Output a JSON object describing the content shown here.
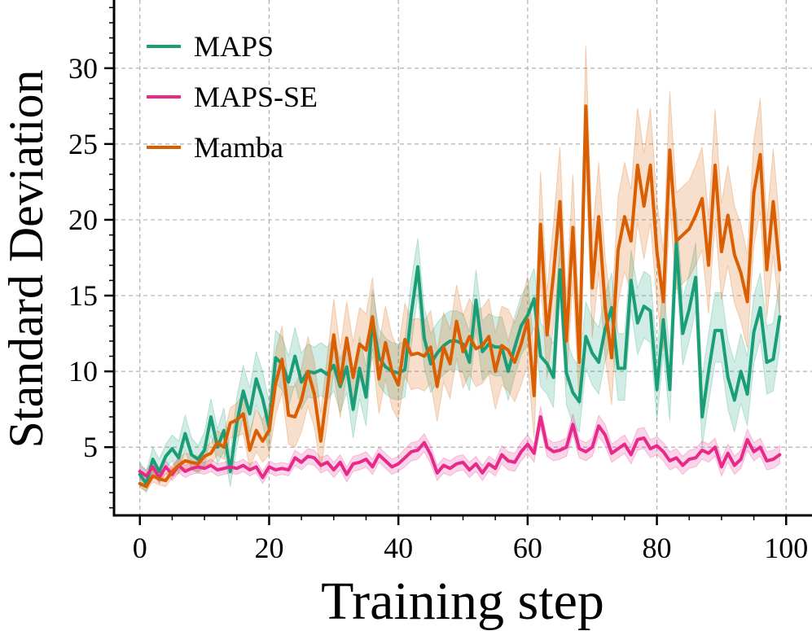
{
  "chart_data": {
    "type": "line",
    "title": "",
    "xlabel": "Training step",
    "ylabel": "Standard Deviation",
    "xlim": [
      -4,
      104
    ],
    "ylim": [
      0.5,
      34.5
    ],
    "grid": true,
    "legend_position": "top-left",
    "xticks": [
      0,
      20,
      40,
      60,
      80,
      100
    ],
    "xtick_labels": [
      "0",
      "20",
      "40",
      "60",
      "80",
      "100"
    ],
    "yticks": [
      5,
      10,
      15,
      20,
      25,
      30
    ],
    "ytick_labels": [
      "5",
      "10",
      "15",
      "20",
      "25",
      "30"
    ],
    "x": [
      0,
      1,
      2,
      3,
      4,
      5,
      6,
      7,
      8,
      9,
      10,
      11,
      12,
      13,
      14,
      15,
      16,
      17,
      18,
      19,
      20,
      21,
      22,
      23,
      24,
      25,
      26,
      27,
      28,
      29,
      30,
      31,
      32,
      33,
      34,
      35,
      36,
      37,
      38,
      39,
      40,
      41,
      42,
      43,
      44,
      45,
      46,
      47,
      48,
      49,
      50,
      51,
      52,
      53,
      54,
      55,
      56,
      57,
      58,
      59,
      60,
      61,
      62,
      63,
      64,
      65,
      66,
      67,
      68,
      69,
      70,
      71,
      72,
      73,
      74,
      75,
      76,
      77,
      78,
      79,
      80,
      81,
      82,
      83,
      84,
      85,
      86,
      87,
      88,
      89,
      90,
      91,
      92,
      93,
      94,
      95,
      96,
      97,
      98,
      99
    ],
    "series": [
      {
        "name": "MAPS",
        "color": "#1b9e77",
        "values": [
          3.2,
          2.6,
          4.2,
          3.4,
          4.4,
          4.9,
          4.3,
          5.9,
          4.5,
          4.2,
          4.8,
          7.0,
          5.0,
          6.1,
          3.4,
          6.6,
          8.7,
          7.2,
          9.5,
          8.2,
          6.3,
          10.9,
          10.5,
          9.3,
          11.0,
          9.3,
          10.0,
          9.9,
          10.1,
          9.8,
          10.4,
          9.0,
          10.3,
          7.5,
          10.2,
          8.3,
          13.4,
          10.9,
          10.3,
          10.0,
          9.9,
          10.1,
          13.8,
          16.9,
          12.2,
          10.5,
          11.2,
          11.7,
          12.0,
          12.0,
          11.8,
          10.6,
          14.7,
          11.3,
          11.8,
          11.6,
          11.6,
          10.0,
          11.6,
          13.0,
          13.7,
          14.8,
          11.0,
          10.5,
          9.6,
          16.7,
          9.9,
          8.6,
          8.0,
          12.3,
          11.2,
          10.6,
          12.8,
          14.2,
          10.2,
          10.2,
          16.0,
          13.2,
          14.3,
          14.0,
          8.8,
          13.4,
          8.8,
          18.5,
          12.5,
          14.1,
          16.2,
          7.0,
          10.0,
          12.7,
          12.7,
          9.6,
          8.1,
          10.0,
          8.5,
          12.6,
          14.2,
          10.6,
          10.8,
          13.6
        ],
        "upper": [
          4.0,
          3.4,
          5.0,
          4.2,
          5.2,
          5.8,
          5.4,
          7.1,
          5.6,
          5.1,
          6.0,
          8.2,
          6.2,
          7.6,
          4.6,
          8.3,
          10.4,
          8.9,
          11.3,
          10.0,
          8.0,
          12.7,
          12.3,
          11.0,
          12.9,
          11.2,
          11.8,
          11.6,
          11.9,
          11.6,
          12.2,
          10.8,
          12.1,
          9.5,
          12.3,
          10.3,
          15.4,
          12.8,
          12.2,
          11.9,
          11.8,
          12.0,
          16.0,
          18.8,
          14.2,
          12.5,
          13.2,
          13.7,
          14.0,
          14.0,
          13.8,
          12.6,
          16.7,
          13.3,
          13.8,
          13.6,
          13.6,
          12.0,
          13.6,
          15.0,
          15.7,
          16.8,
          13.2,
          12.7,
          11.8,
          18.6,
          12.2,
          10.9,
          10.3,
          14.6,
          13.5,
          12.9,
          15.1,
          16.5,
          12.5,
          12.5,
          18.0,
          15.5,
          16.6,
          16.3,
          11.2,
          15.8,
          11.3,
          20.8,
          14.8,
          16.4,
          18.5,
          9.6,
          12.5,
          15.2,
          15.2,
          12.1,
          10.6,
          12.5,
          11.0,
          15.0,
          16.5,
          13.0,
          13.2,
          15.9
        ],
        "lower": [
          2.5,
          2.0,
          3.4,
          2.7,
          3.6,
          4.1,
          3.3,
          4.8,
          3.5,
          3.3,
          3.7,
          5.8,
          3.9,
          4.7,
          2.4,
          5.0,
          7.1,
          5.6,
          7.8,
          6.5,
          4.7,
          9.2,
          8.8,
          7.7,
          9.2,
          7.5,
          8.3,
          8.2,
          8.4,
          8.1,
          8.7,
          7.3,
          8.6,
          5.6,
          8.2,
          6.4,
          11.5,
          9.1,
          8.5,
          8.2,
          8.1,
          8.3,
          11.7,
          15.1,
          10.3,
          8.6,
          9.3,
          9.8,
          10.1,
          10.1,
          9.9,
          8.7,
          12.8,
          9.4,
          9.9,
          9.7,
          9.7,
          8.1,
          9.7,
          11.1,
          11.8,
          12.9,
          9.0,
          8.5,
          7.6,
          14.9,
          7.8,
          6.5,
          6.0,
          10.2,
          9.1,
          8.5,
          10.7,
          12.1,
          8.1,
          8.1,
          14.1,
          11.1,
          12.2,
          11.9,
          6.8,
          11.2,
          6.7,
          16.4,
          10.4,
          12.0,
          14.1,
          5.0,
          7.9,
          10.6,
          10.6,
          7.5,
          6.0,
          7.9,
          6.4,
          10.5,
          12.1,
          8.5,
          8.7,
          11.5
        ]
      },
      {
        "name": "MAPS-SE",
        "color": "#e7298a",
        "values": [
          3.4,
          3.1,
          3.7,
          3.0,
          3.7,
          3.2,
          3.8,
          3.4,
          3.6,
          3.7,
          3.6,
          3.8,
          3.5,
          3.6,
          3.7,
          3.6,
          3.8,
          3.5,
          3.7,
          3.0,
          3.7,
          3.5,
          3.6,
          3.5,
          4.3,
          4.0,
          4.4,
          4.3,
          3.8,
          4.0,
          3.5,
          4.0,
          3.2,
          3.9,
          4.0,
          4.2,
          3.7,
          4.5,
          4.1,
          3.7,
          3.9,
          4.3,
          4.7,
          4.8,
          5.3,
          4.5,
          3.3,
          3.8,
          3.6,
          3.9,
          4.0,
          3.5,
          3.9,
          3.3,
          3.9,
          3.6,
          4.5,
          4.1,
          4.0,
          4.7,
          5.2,
          4.6,
          7.0,
          5.0,
          4.7,
          4.8,
          5.0,
          6.5,
          4.9,
          4.7,
          5.0,
          6.4,
          5.8,
          4.6,
          4.9,
          5.2,
          4.5,
          5.5,
          5.6,
          4.9,
          5.1,
          4.7,
          4.1,
          4.3,
          3.8,
          4.2,
          4.3,
          4.8,
          4.6,
          5.0,
          3.7,
          4.6,
          3.8,
          4.2,
          5.5,
          4.7,
          5.0,
          4.1,
          4.2,
          4.5
        ],
        "upper": [
          3.8,
          3.5,
          4.1,
          3.4,
          4.1,
          3.6,
          4.3,
          3.8,
          4.0,
          4.1,
          4.0,
          4.2,
          3.9,
          4.0,
          4.1,
          4.0,
          4.2,
          3.9,
          4.1,
          3.4,
          4.1,
          3.9,
          4.0,
          3.9,
          4.8,
          4.5,
          4.9,
          4.8,
          4.3,
          4.5,
          4.0,
          4.5,
          3.7,
          4.4,
          4.5,
          4.7,
          4.2,
          5.0,
          4.6,
          4.2,
          4.4,
          4.9,
          5.3,
          5.4,
          5.9,
          5.1,
          3.8,
          4.3,
          4.1,
          4.4,
          4.5,
          4.0,
          4.4,
          3.8,
          4.4,
          4.1,
          5.1,
          4.7,
          4.6,
          5.3,
          5.8,
          5.2,
          7.7,
          5.6,
          5.3,
          5.4,
          5.6,
          7.2,
          5.5,
          5.3,
          5.6,
          7.1,
          6.5,
          5.2,
          5.5,
          5.8,
          5.1,
          6.2,
          6.3,
          5.5,
          5.7,
          5.3,
          4.7,
          4.9,
          4.4,
          4.8,
          4.9,
          5.4,
          5.2,
          5.6,
          4.3,
          5.2,
          4.4,
          4.8,
          6.2,
          5.3,
          5.6,
          4.7,
          4.8,
          5.1
        ],
        "lower": [
          3.0,
          2.7,
          3.3,
          2.6,
          3.3,
          2.8,
          3.3,
          3.0,
          3.2,
          3.3,
          3.2,
          3.4,
          3.1,
          3.2,
          3.3,
          3.2,
          3.4,
          3.1,
          3.3,
          2.6,
          3.3,
          3.1,
          3.2,
          3.1,
          3.8,
          3.5,
          3.9,
          3.8,
          3.3,
          3.5,
          3.0,
          3.5,
          2.7,
          3.4,
          3.5,
          3.7,
          3.2,
          4.0,
          3.6,
          3.2,
          3.4,
          3.7,
          4.1,
          4.2,
          4.7,
          3.9,
          2.8,
          3.3,
          3.1,
          3.4,
          3.5,
          3.0,
          3.4,
          2.8,
          3.4,
          3.1,
          3.9,
          3.5,
          3.4,
          4.1,
          4.6,
          4.0,
          6.3,
          4.4,
          4.1,
          4.2,
          4.4,
          5.8,
          4.3,
          4.1,
          4.4,
          5.7,
          5.1,
          4.0,
          4.3,
          4.6,
          3.9,
          4.8,
          4.9,
          4.3,
          4.5,
          4.1,
          3.5,
          3.7,
          3.2,
          3.6,
          3.7,
          4.2,
          4.0,
          4.4,
          3.1,
          4.0,
          3.2,
          3.6,
          4.8,
          4.1,
          4.4,
          3.5,
          3.6,
          3.9
        ]
      },
      {
        "name": "Mamba",
        "color": "#d95f02",
        "values": [
          2.6,
          2.4,
          3.1,
          2.9,
          2.8,
          3.4,
          3.8,
          4.1,
          4.0,
          3.9,
          4.4,
          4.6,
          5.3,
          5.0,
          6.6,
          6.8,
          7.2,
          4.8,
          6.1,
          5.4,
          6.1,
          9.2,
          10.8,
          7.1,
          7.0,
          8.1,
          10.0,
          8.5,
          5.4,
          8.8,
          12.4,
          9.2,
          12.2,
          9.6,
          11.8,
          11.4,
          13.6,
          9.5,
          11.9,
          10.0,
          9.1,
          12.1,
          11.1,
          11.2,
          11.0,
          11.6,
          9.0,
          11.6,
          10.5,
          13.3,
          11.3,
          12.3,
          11.5,
          11.7,
          12.3,
          10.0,
          11.7,
          11.4,
          10.6,
          11.8,
          13.4,
          8.4,
          19.7,
          12.4,
          16.4,
          21.2,
          12.0,
          19.5,
          10.6,
          27.5,
          15.5,
          20.2,
          14.2,
          10.9,
          18.0,
          20.2,
          18.6,
          23.6,
          20.9,
          23.6,
          17.9,
          14.6,
          24.6,
          18.6,
          19.0,
          19.4,
          20.3,
          21.4,
          17.0,
          23.6,
          17.9,
          20.3,
          17.7,
          16.5,
          14.6,
          21.8,
          24.3,
          16.7,
          21.2,
          16.7
        ],
        "upper": [
          2.9,
          2.7,
          3.5,
          3.3,
          3.2,
          3.8,
          4.3,
          4.6,
          4.5,
          4.4,
          5.0,
          5.3,
          6.1,
          5.8,
          7.6,
          7.9,
          8.5,
          6.0,
          7.5,
          6.8,
          7.7,
          11.3,
          13.0,
          9.0,
          9.0,
          10.2,
          12.3,
          10.7,
          7.3,
          11.0,
          14.8,
          11.5,
          14.6,
          11.9,
          14.2,
          13.8,
          16.2,
          11.8,
          14.3,
          12.4,
          11.4,
          14.5,
          13.4,
          13.5,
          13.3,
          14.0,
          11.3,
          13.9,
          12.8,
          15.7,
          13.7,
          14.8,
          14.0,
          14.2,
          14.8,
          12.5,
          14.3,
          14.1,
          13.2,
          14.5,
          16.3,
          11.2,
          23.2,
          15.3,
          19.8,
          24.8,
          14.9,
          23.0,
          13.5,
          31.5,
          18.8,
          23.8,
          17.5,
          14.0,
          21.5,
          23.8,
          22.0,
          27.4,
          24.4,
          27.4,
          21.3,
          17.9,
          28.5,
          21.8,
          22.2,
          22.6,
          23.6,
          24.8,
          20.2,
          27.3,
          21.1,
          23.6,
          20.9,
          19.7,
          17.7,
          25.3,
          28.0,
          19.9,
          24.7,
          19.8
        ],
        "lower": [
          2.3,
          2.1,
          2.7,
          2.5,
          2.4,
          3.0,
          3.3,
          3.6,
          3.5,
          3.4,
          3.8,
          3.9,
          4.5,
          4.2,
          5.6,
          5.7,
          5.9,
          3.6,
          4.7,
          4.0,
          4.5,
          7.1,
          8.6,
          5.2,
          5.0,
          6.0,
          7.7,
          6.3,
          3.5,
          6.6,
          10.0,
          6.9,
          9.8,
          7.3,
          9.4,
          9.0,
          11.0,
          7.2,
          9.5,
          7.6,
          6.8,
          9.7,
          8.8,
          8.9,
          8.7,
          9.2,
          6.7,
          9.3,
          8.2,
          10.9,
          8.9,
          9.8,
          9.0,
          9.2,
          9.8,
          7.5,
          9.1,
          8.7,
          8.0,
          9.1,
          10.5,
          5.6,
          16.2,
          9.5,
          13.0,
          17.6,
          9.1,
          16.0,
          7.7,
          23.5,
          12.2,
          16.6,
          10.9,
          7.8,
          14.5,
          16.6,
          15.2,
          19.8,
          17.4,
          19.8,
          14.5,
          11.3,
          20.7,
          15.4,
          15.8,
          16.2,
          17.0,
          18.0,
          13.8,
          19.9,
          14.7,
          17.0,
          14.5,
          13.3,
          11.5,
          18.3,
          20.6,
          13.5,
          17.7,
          13.6
        ]
      }
    ]
  }
}
